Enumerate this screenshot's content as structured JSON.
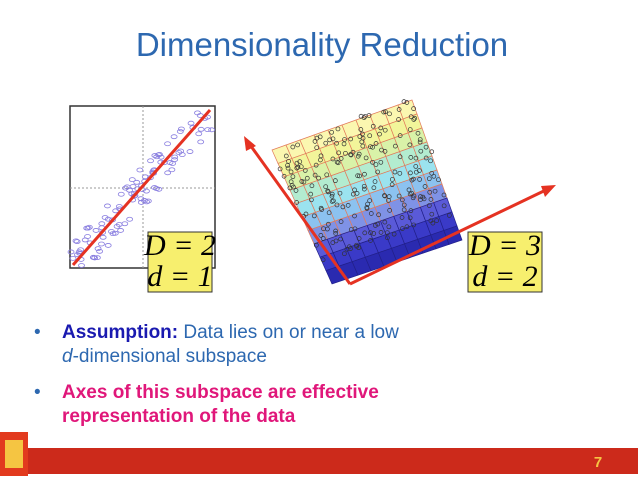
{
  "slide": {
    "title": "Dimensionality Reduction",
    "figures": [
      {
        "upper": "D = 2",
        "lower": "d = 1"
      },
      {
        "upper": "D = 3",
        "lower": "d = 2"
      }
    ],
    "bullets": [
      {
        "lead": "Assumption:",
        "rest": " Data lies on or near a low",
        "italic": "d",
        "line2": "-dimensional subspace"
      },
      {
        "line1": "Axes of this subspace are effective",
        "line2": "representation of the data"
      }
    ],
    "page_number": "7"
  }
}
